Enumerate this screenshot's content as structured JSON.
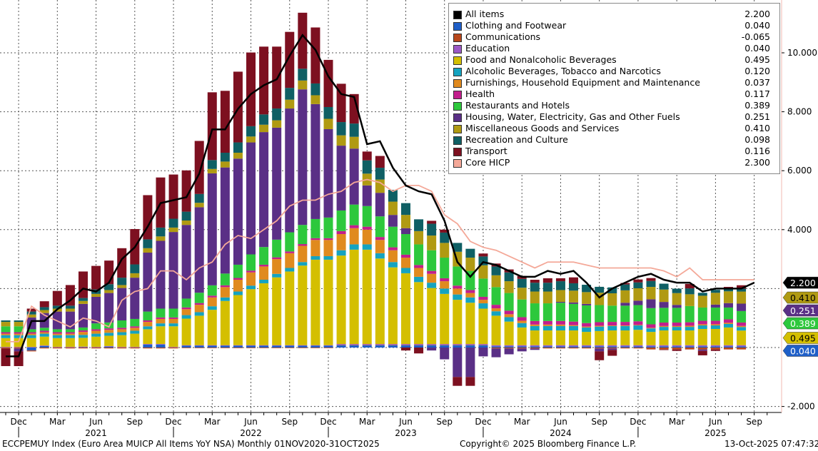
{
  "chart_data": {
    "type": "bar",
    "subtype": "stacked bar with line overlays",
    "x_start": "Nov 2020",
    "x_frequency": "Monthly",
    "ylim": [
      -2,
      11
    ],
    "y_ticks": [
      "-2.000",
      "4.000",
      "6.000",
      "8.000",
      "10.000"
    ],
    "y_tick_values": [
      -2,
      4,
      6,
      8,
      10
    ],
    "x_tick_labels": [
      {
        "i": 1,
        "label": "Dec"
      },
      {
        "i": 4,
        "label": "Mar"
      },
      {
        "i": 7,
        "label": "Jun"
      },
      {
        "i": 10,
        "label": "Sep"
      },
      {
        "i": 13,
        "label": "Dec"
      },
      {
        "i": 16,
        "label": "Mar"
      },
      {
        "i": 19,
        "label": "Jun"
      },
      {
        "i": 22,
        "label": "Sep"
      },
      {
        "i": 25,
        "label": "Dec"
      },
      {
        "i": 28,
        "label": "Mar"
      },
      {
        "i": 31,
        "label": "Jun"
      },
      {
        "i": 34,
        "label": "Sep"
      },
      {
        "i": 37,
        "label": "Dec"
      },
      {
        "i": 40,
        "label": "Mar"
      },
      {
        "i": 43,
        "label": "Jun"
      },
      {
        "i": 46,
        "label": "Sep"
      },
      {
        "i": 49,
        "label": "Dec"
      },
      {
        "i": 52,
        "label": "Mar"
      },
      {
        "i": 55,
        "label": "Jun"
      },
      {
        "i": 58,
        "label": "Sep"
      }
    ],
    "year_labels": [
      {
        "i": 7,
        "label": "2021"
      },
      {
        "i": 19,
        "label": "2022"
      },
      {
        "i": 31,
        "label": "2023"
      },
      {
        "i": 43,
        "label": "2024"
      },
      {
        "i": 55,
        "label": "2025"
      }
    ],
    "legend_position": "top-right",
    "grid": true,
    "lines": [
      {
        "name": "All items",
        "latest": "2.200",
        "color": "#000000",
        "values": [
          -0.3,
          -0.3,
          0.9,
          0.9,
          1.3,
          1.6,
          2.0,
          1.9,
          2.2,
          3.0,
          3.4,
          4.1,
          4.9,
          5.0,
          5.1,
          5.9,
          7.4,
          7.4,
          8.1,
          8.6,
          8.9,
          9.1,
          9.9,
          10.6,
          10.1,
          9.2,
          8.6,
          8.5,
          6.9,
          7.0,
          6.1,
          5.5,
          5.3,
          5.2,
          4.3,
          2.9,
          2.4,
          2.9,
          2.8,
          2.6,
          2.4,
          2.4,
          2.6,
          2.5,
          2.6,
          2.2,
          1.7,
          2.0,
          2.2,
          2.4,
          2.5,
          2.3,
          2.2,
          2.2,
          1.9,
          2.0,
          2.0,
          2.0,
          2.2
        ]
      },
      {
        "name": "Core HICP",
        "latest": "2.300",
        "color": "#f4a898",
        "values": [
          0.2,
          0.2,
          1.4,
          1.1,
          0.9,
          0.7,
          1.0,
          0.9,
          0.7,
          1.6,
          1.9,
          2.0,
          2.6,
          2.6,
          2.3,
          2.7,
          2.9,
          3.5,
          3.8,
          3.7,
          4.0,
          4.3,
          4.8,
          5.0,
          5.0,
          5.2,
          5.3,
          5.6,
          5.7,
          5.6,
          5.3,
          5.5,
          5.5,
          5.3,
          4.5,
          4.2,
          3.6,
          3.4,
          3.3,
          3.1,
          2.9,
          2.7,
          2.9,
          2.9,
          2.9,
          2.8,
          2.7,
          2.7,
          2.7,
          2.7,
          2.7,
          2.6,
          2.4,
          2.7,
          2.3,
          2.3,
          2.3,
          2.3,
          2.3
        ]
      }
    ],
    "series": [
      {
        "name": "Clothing and Footwear",
        "latest": "0.040",
        "color": "#1f5fc8",
        "values": [
          0,
          0,
          -0.1,
          0.05,
          0,
          0,
          0.01,
          0,
          0.03,
          0,
          0,
          0.1,
          0.1,
          0,
          0.06,
          0.06,
          0.06,
          0.06,
          0.06,
          0.06,
          0.06,
          0.06,
          0.06,
          0.06,
          0.06,
          0.06,
          0.08,
          0.08,
          0.08,
          0.08,
          0.08,
          0.08,
          0.08,
          0.08,
          0.08,
          0.08,
          0.08,
          0.08,
          0.04,
          0.04,
          0.04,
          0.04,
          0.04,
          0.04,
          0.04,
          0.04,
          0.04,
          0.04,
          0.04,
          0.04,
          0.04,
          0.04,
          0.04,
          0.04,
          0.04,
          0.04,
          0.04,
          0.04
        ]
      },
      {
        "name": "Communications",
        "latest": "-0.065",
        "color": "#b8471b",
        "values": [
          -0.03,
          -0.03,
          -0.03,
          -0.03,
          -0.03,
          -0.03,
          -0.03,
          -0.03,
          -0.03,
          -0.03,
          -0.03,
          -0.03,
          -0.03,
          -0.03,
          -0.02,
          -0.02,
          -0.02,
          -0.02,
          -0.02,
          -0.02,
          -0.02,
          -0.02,
          -0.02,
          -0.02,
          -0.02,
          -0.02,
          0.01,
          0.01,
          0.01,
          0.01,
          0.01,
          0.01,
          0.01,
          0.01,
          0.01,
          0.01,
          0.01,
          0.01,
          -0.03,
          -0.03,
          -0.03,
          -0.03,
          -0.03,
          -0.03,
          -0.03,
          -0.03,
          -0.03,
          -0.03,
          -0.03,
          -0.03,
          -0.065,
          -0.065,
          -0.065,
          -0.065,
          -0.065,
          -0.065,
          -0.065,
          -0.065
        ]
      },
      {
        "name": "Education",
        "latest": "0.040",
        "color": "#9b59c6",
        "values": [
          0.02,
          0.02,
          0.02,
          0.02,
          0.02,
          0.02,
          0.02,
          0.02,
          0.02,
          0.02,
          0.02,
          0.02,
          0.02,
          0.02,
          0.02,
          0.02,
          0.02,
          0.02,
          0.02,
          0.02,
          0.02,
          0.02,
          0.02,
          0.02,
          0.02,
          0.02,
          0.03,
          0.03,
          0.03,
          0.03,
          0.03,
          0.03,
          0.03,
          0.03,
          0.03,
          0.03,
          0.03,
          0.03,
          0.04,
          0.04,
          0.04,
          0.04,
          0.04,
          0.04,
          0.04,
          0.04,
          0.04,
          0.04,
          0.04,
          0.04,
          0.04,
          0.04,
          0.04,
          0.04,
          0.04,
          0.04,
          0.04,
          0.04
        ]
      },
      {
        "name": "Food and Nonalcoholic Beverages",
        "latest": "0.495",
        "color": "#d4bf00",
        "values": [
          0.3,
          0.3,
          0.3,
          0.3,
          0.3,
          0.3,
          0.3,
          0.35,
          0.35,
          0.4,
          0.45,
          0.5,
          0.6,
          0.7,
          0.9,
          1.0,
          1.2,
          1.5,
          1.7,
          1.9,
          2.1,
          2.3,
          2.5,
          2.7,
          2.9,
          2.9,
          3.0,
          3.2,
          3.2,
          2.9,
          2.6,
          2.4,
          2.1,
          1.9,
          1.7,
          1.5,
          1.4,
          1.2,
          1.0,
          0.8,
          0.6,
          0.5,
          0.5,
          0.5,
          0.5,
          0.45,
          0.48,
          0.5,
          0.5,
          0.52,
          0.45,
          0.5,
          0.5,
          0.5,
          0.55,
          0.55,
          0.6,
          0.495
        ]
      },
      {
        "name": "Alcoholic Beverages, Tobacco and Narcotics",
        "latest": "0.120",
        "color": "#14a3c0",
        "values": [
          0.1,
          0.1,
          0.1,
          0.1,
          0.1,
          0.1,
          0.1,
          0.1,
          0.1,
          0.1,
          0.1,
          0.1,
          0.1,
          0.1,
          0.12,
          0.12,
          0.12,
          0.12,
          0.12,
          0.12,
          0.12,
          0.12,
          0.12,
          0.12,
          0.12,
          0.12,
          0.18,
          0.18,
          0.18,
          0.18,
          0.18,
          0.18,
          0.18,
          0.18,
          0.18,
          0.18,
          0.18,
          0.18,
          0.15,
          0.15,
          0.15,
          0.15,
          0.15,
          0.15,
          0.15,
          0.15,
          0.15,
          0.15,
          0.15,
          0.15,
          0.12,
          0.12,
          0.12,
          0.12,
          0.12,
          0.12,
          0.12,
          0.12
        ]
      },
      {
        "name": "Furnishings, Household Equipment and Maintenance",
        "latest": "0.037",
        "color": "#e08a1e",
        "values": [
          0.05,
          0.05,
          0.05,
          0.05,
          0.05,
          0.05,
          0.1,
          0.1,
          0.1,
          0.1,
          0.1,
          0.15,
          0.15,
          0.15,
          0.2,
          0.25,
          0.3,
          0.35,
          0.4,
          0.45,
          0.45,
          0.5,
          0.5,
          0.55,
          0.55,
          0.55,
          0.55,
          0.55,
          0.5,
          0.45,
          0.4,
          0.35,
          0.3,
          0.3,
          0.25,
          0.2,
          0.15,
          0.12,
          0.1,
          0.1,
          0.08,
          0.05,
          0.05,
          0.05,
          0.03,
          0.03,
          0.03,
          0.02,
          0.02,
          0.02,
          0.02,
          0.03,
          0.03,
          0.04,
          0.04,
          0.04,
          0.04,
          0.037
        ]
      },
      {
        "name": "Health",
        "latest": "0.117",
        "color": "#c21e8c",
        "values": [
          0.05,
          0.05,
          0.05,
          0.05,
          0.05,
          0.05,
          0.05,
          0.05,
          0.05,
          0.05,
          0.05,
          0.05,
          0.05,
          0.05,
          0.06,
          0.06,
          0.06,
          0.06,
          0.06,
          0.06,
          0.06,
          0.06,
          0.06,
          0.06,
          0.06,
          0.06,
          0.1,
          0.1,
          0.1,
          0.1,
          0.1,
          0.1,
          0.1,
          0.1,
          0.1,
          0.1,
          0.1,
          0.1,
          0.12,
          0.12,
          0.12,
          0.12,
          0.12,
          0.12,
          0.12,
          0.12,
          0.12,
          0.12,
          0.12,
          0.12,
          0.117,
          0.117,
          0.117,
          0.117,
          0.117,
          0.117,
          0.117,
          0.117
        ]
      },
      {
        "name": "Restaurants and Hotels",
        "latest": "0.389",
        "color": "#2dc83c",
        "values": [
          0.2,
          0.2,
          0.1,
          0.1,
          0.1,
          0.1,
          0.1,
          0.2,
          0.2,
          0.25,
          0.25,
          0.3,
          0.3,
          0.3,
          0.3,
          0.35,
          0.35,
          0.4,
          0.45,
          0.55,
          0.6,
          0.6,
          0.65,
          0.65,
          0.65,
          0.7,
          0.7,
          0.7,
          0.7,
          0.7,
          0.7,
          0.7,
          0.7,
          0.7,
          0.7,
          0.65,
          0.65,
          0.62,
          0.6,
          0.6,
          0.6,
          0.6,
          0.6,
          0.62,
          0.6,
          0.6,
          0.58,
          0.55,
          0.55,
          0.55,
          0.55,
          0.5,
          0.5,
          0.55,
          0.45,
          0.45,
          0.4,
          0.389
        ]
      },
      {
        "name": "Housing, Water, Electricity, Gas and Other Fuels",
        "latest": "0.251",
        "color": "#5a2f86",
        "values": [
          0,
          -0.1,
          0.4,
          0.5,
          0.6,
          0.6,
          0.8,
          0.9,
          1.0,
          1.1,
          1.4,
          2.0,
          2.3,
          2.6,
          2.5,
          2.9,
          3.8,
          3.6,
          3.6,
          3.8,
          3.9,
          3.8,
          4.2,
          4.6,
          3.9,
          3.0,
          2.2,
          1.9,
          0.7,
          0.8,
          0.4,
          0.2,
          0,
          -0.1,
          -0.4,
          -1.0,
          -1.0,
          -0.3,
          -0.3,
          -0.2,
          -0.1,
          -0.05,
          0,
          0.03,
          0.05,
          0.05,
          -0.1,
          -0.05,
          0.1,
          0.15,
          0.3,
          0.2,
          0.1,
          0,
          -0.05,
          0.1,
          0.15,
          0.251
        ]
      },
      {
        "name": "Miscellaneous Goods and Services",
        "latest": "0.410",
        "color": "#b09a12",
        "values": [
          0.15,
          0.15,
          0.1,
          0.1,
          0.1,
          0.1,
          0.1,
          0.1,
          0.1,
          0.1,
          0.15,
          0.15,
          0.15,
          0.15,
          0.15,
          0.15,
          0.15,
          0.2,
          0.2,
          0.2,
          0.25,
          0.25,
          0.3,
          0.3,
          0.3,
          0.35,
          0.35,
          0.4,
          0.4,
          0.45,
          0.45,
          0.45,
          0.45,
          0.5,
          0.5,
          0.5,
          0.45,
          0.45,
          0.4,
          0.4,
          0.4,
          0.4,
          0.4,
          0.4,
          0.4,
          0.4,
          0.42,
          0.42,
          0.42,
          0.42,
          0.42,
          0.42,
          0.4,
          0.4,
          0.4,
          0.4,
          0.4,
          0.41
        ]
      },
      {
        "name": "Recreation and Culture",
        "latest": "0.098",
        "color": "#0f5f64",
        "values": [
          0.05,
          0.05,
          0.1,
          0.1,
          0.1,
          0.1,
          0.1,
          0.15,
          0.2,
          0.25,
          0.3,
          0.3,
          0.3,
          0.3,
          0.3,
          0.3,
          0.3,
          0.3,
          0.35,
          0.35,
          0.35,
          0.4,
          0.4,
          0.4,
          0.4,
          0.4,
          0.45,
          0.45,
          0.45,
          0.4,
          0.4,
          0.4,
          0.4,
          0.4,
          0.35,
          0.3,
          0.3,
          0.3,
          0.3,
          0.3,
          0.3,
          0.3,
          0.3,
          0.3,
          0.25,
          0.25,
          0.2,
          0.2,
          0.2,
          0.2,
          0.2,
          0.2,
          0.15,
          0.2,
          0.1,
          0.1,
          0.1,
          0.098
        ]
      },
      {
        "name": "Transport",
        "latest": "0.116",
        "color": "#7d1020",
        "values": [
          -0.6,
          -0.5,
          0.1,
          0.2,
          0.5,
          0.7,
          0.9,
          0.8,
          0.8,
          1.0,
          1.2,
          1.5,
          1.7,
          1.5,
          1.4,
          1.8,
          2.3,
          2.1,
          2.4,
          2.5,
          2.3,
          2.1,
          1.9,
          1.9,
          1.9,
          1.6,
          1.3,
          1.0,
          0.3,
          0.4,
          0,
          -0.1,
          -0.2,
          0.1,
          0.1,
          -0.3,
          -0.3,
          0.1,
          0.1,
          0.1,
          0.1,
          0.1,
          0.15,
          0.1,
          0.2,
          0,
          -0.3,
          -0.2,
          0.05,
          0.1,
          0.1,
          -0.02,
          -0.05,
          0.15,
          -0.15,
          -0.05,
          0.05,
          0.116
        ]
      }
    ],
    "right_tags": [
      {
        "series": "All items",
        "label": "2.200"
      },
      {
        "series": "Miscellaneous Goods and Services",
        "label": "0.410"
      },
      {
        "series": "Housing, Water, Electricity, Gas and Other Fuels",
        "label": "0.251"
      },
      {
        "series": "Restaurants and Hotels",
        "label": "0.389"
      },
      {
        "series": "Food and Nonalcoholic Beverages",
        "label": "0.495"
      },
      {
        "series": "Clothing and Footwear",
        "label": "0.040"
      }
    ]
  },
  "legend": [
    {
      "name": "All items",
      "value": "2.200",
      "color": "#000000"
    },
    {
      "name": "Clothing and Footwear",
      "value": "0.040",
      "color": "#1f5fc8"
    },
    {
      "name": "Communications",
      "value": "-0.065",
      "color": "#b8471b"
    },
    {
      "name": "Education",
      "value": "0.040",
      "color": "#9b59c6"
    },
    {
      "name": "Food and Nonalcoholic Beverages",
      "value": "0.495",
      "color": "#d4bf00"
    },
    {
      "name": "Alcoholic Beverages, Tobacco and Narcotics",
      "value": "0.120",
      "color": "#14a3c0"
    },
    {
      "name": "Furnishings, Household Equipment and Maintenance",
      "value": "0.037",
      "color": "#e08a1e"
    },
    {
      "name": "Health",
      "value": "0.117",
      "color": "#c21e8c"
    },
    {
      "name": "Restaurants and Hotels",
      "value": "0.389",
      "color": "#2dc83c"
    },
    {
      "name": "Housing, Water, Electricity, Gas and Other Fuels",
      "value": "0.251",
      "color": "#5a2f86"
    },
    {
      "name": "Miscellaneous Goods and Services",
      "value": "0.410",
      "color": "#b09a12"
    },
    {
      "name": "Recreation and Culture",
      "value": "0.098",
      "color": "#0f5f64"
    },
    {
      "name": "Transport",
      "value": "0.116",
      "color": "#7d1020"
    },
    {
      "name": "Core HICP",
      "value": "2.300",
      "color": "#f4a898"
    }
  ],
  "footer": {
    "source": "ECCPEMUY Index (Euro Area MUICP All Items YoY NSA) Monthly 01NOV2020-31OCT2025",
    "copyright": "Copyright© 2025 Bloomberg Finance L.P.",
    "timestamp": "13-Oct-2025 07:47:32"
  }
}
